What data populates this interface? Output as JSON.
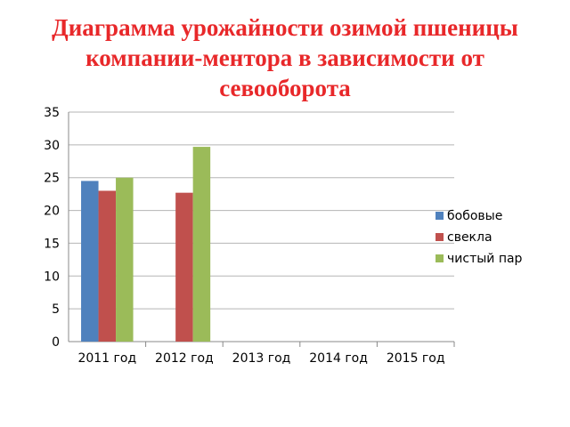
{
  "chart_data": {
    "type": "bar",
    "title": "Диаграмма урожайности озимой пшеницы компании-ментора в зависимости от севооборота",
    "categories": [
      "2011 год",
      "2012 год",
      "2013 год",
      "2014 год",
      "2015 год"
    ],
    "series": [
      {
        "name": "бобовые",
        "color": "#4f81bd",
        "values": [
          24.5,
          null,
          null,
          null,
          null
        ]
      },
      {
        "name": "свекла",
        "color": "#c0504d",
        "values": [
          23,
          22.7,
          null,
          null,
          null
        ]
      },
      {
        "name": "чистый пар",
        "color": "#9bbb59",
        "values": [
          25,
          29.7,
          null,
          null,
          null
        ]
      }
    ],
    "ylim": [
      0,
      35
    ],
    "yticks": [
      "0",
      "5",
      "10",
      "15",
      "20",
      "25",
      "30",
      "35"
    ],
    "grid": true,
    "legend": "right"
  }
}
